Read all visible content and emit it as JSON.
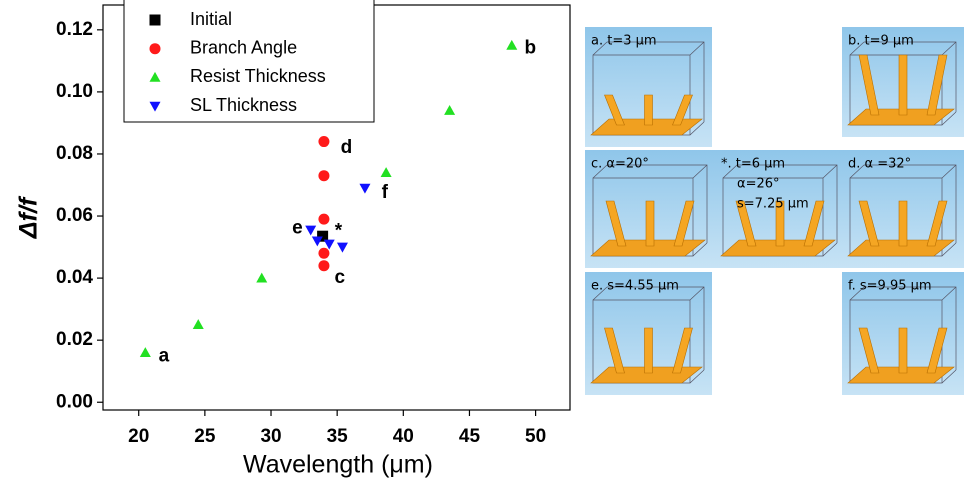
{
  "chart_data": {
    "type": "scatter",
    "x_label": "Wavelength (μm)",
    "y_label": "Δf/f",
    "xlim": [
      17.3,
      52.6
    ],
    "ylim": [
      -0.0025,
      0.128
    ],
    "xticks": [
      20,
      25,
      30,
      35,
      40,
      45,
      50
    ],
    "yticks": [
      {
        "value": 0,
        "label": "0.00"
      },
      {
        "value": 0.02,
        "label": "0.02"
      },
      {
        "value": 0.04,
        "label": "0.04"
      },
      {
        "value": 0.06,
        "label": "0.06"
      },
      {
        "value": 0.08,
        "label": "0.08"
      },
      {
        "value": 0.1,
        "label": "0.10"
      },
      {
        "value": 0.12,
        "label": "0.12"
      }
    ],
    "legend": "top-left",
    "series": [
      {
        "name": "Initial",
        "color": "#000000",
        "marker": "square",
        "x": [
          33.9
        ],
        "values": [
          0.0535
        ]
      },
      {
        "name": "Branch Angle",
        "color": "#ff1a1a",
        "marker": "circle",
        "x": [
          34,
          34,
          34,
          34,
          34
        ],
        "values": [
          0.084,
          0.073,
          0.059,
          0.048,
          0.044
        ]
      },
      {
        "name": "Resist Thickness",
        "color": "#22e022",
        "marker": "triangle-up",
        "x": [
          20.5,
          24.5,
          29.3,
          38.7,
          43.5,
          48.2
        ],
        "values": [
          0.016,
          0.025,
          0.04,
          0.074,
          0.094,
          0.115
        ]
      },
      {
        "name": "SL Thickness",
        "color": "#1010ff",
        "marker": "triangle-down",
        "x": [
          33.0,
          33.5,
          34.4,
          35.4,
          37.1
        ],
        "values": [
          0.0555,
          0.052,
          0.051,
          0.05,
          0.069
        ]
      }
    ],
    "annotations": [
      {
        "text": "a",
        "x": 21.9,
        "y": 0.0148
      },
      {
        "text": "b",
        "x": 49.6,
        "y": 0.114
      },
      {
        "text": "c",
        "x": 35.2,
        "y": 0.04
      },
      {
        "text": "d",
        "x": 35.7,
        "y": 0.082
      },
      {
        "text": "e",
        "x": 32.0,
        "y": 0.056
      },
      {
        "text": "f",
        "x": 38.6,
        "y": 0.0674
      },
      {
        "text": "*",
        "x": 35.1,
        "y": 0.055
      }
    ]
  },
  "panels": [
    {
      "lines": [
        "a. t=3 μm"
      ]
    },
    {
      "lines": [
        "b. t=9 μm"
      ]
    },
    {
      "lines": [
        "c. α=20°"
      ]
    },
    {
      "lines": [
        "*. t=6 μm",
        "α=26°",
        "s=7.25 μm"
      ]
    },
    {
      "lines": [
        "d. α =32°"
      ]
    },
    {
      "lines": [
        "e. s=4.55 μm"
      ]
    },
    {
      "lines": [
        "f. s=9.95 μm"
      ]
    }
  ]
}
